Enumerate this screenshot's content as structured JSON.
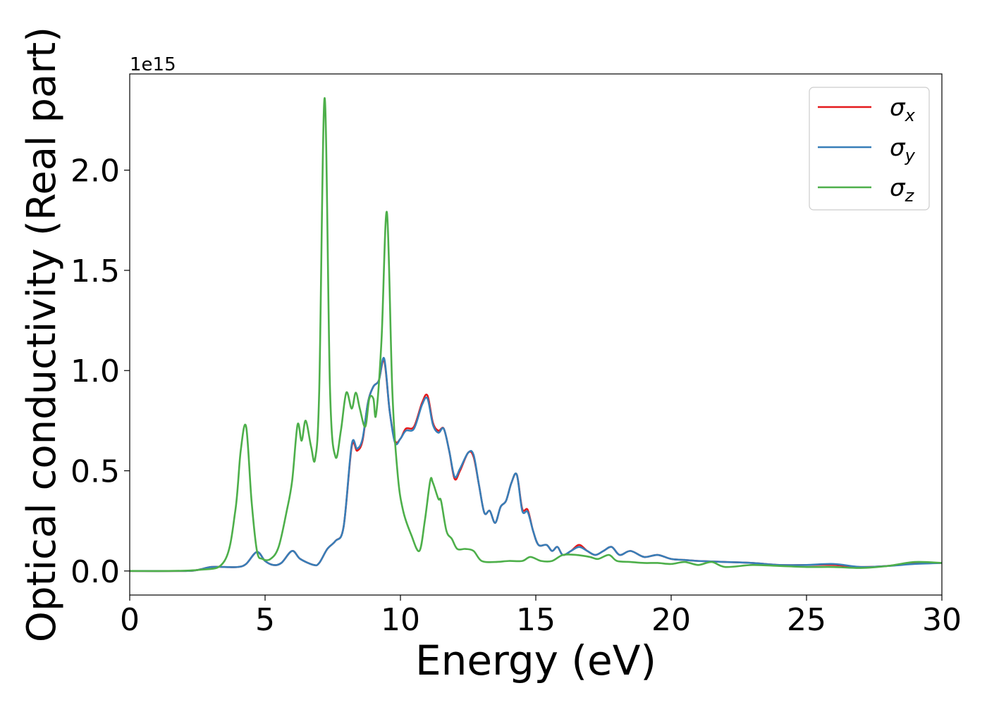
{
  "chart_data": {
    "type": "line",
    "xlabel": "Energy (eV)",
    "ylabel": "Optical conductivity (Real part)",
    "offset_text": "1e15",
    "scale": 1000000000000000.0,
    "xlim": [
      0,
      30
    ],
    "ylim": [
      -0.12,
      2.48
    ],
    "xticks": [
      0,
      5,
      10,
      15,
      20,
      25,
      30
    ],
    "xtick_labels": [
      "0",
      "5",
      "10",
      "15",
      "20",
      "25",
      "30"
    ],
    "yticks": [
      0.0,
      0.5,
      1.0,
      1.5,
      2.0
    ],
    "ytick_labels": [
      "0.0",
      "0.5",
      "1.0",
      "1.5",
      "2.0"
    ],
    "grid": false,
    "legend_position": "top-right",
    "series": [
      {
        "name": "σx",
        "symbol": "σ",
        "subscript": "x",
        "color": "#e41a1c",
        "x": [
          0,
          2,
          2.5,
          3,
          3.5,
          4,
          4.3,
          4.7,
          5.0,
          5.3,
          5.6,
          6.0,
          6.3,
          6.8,
          7.0,
          7.3,
          7.6,
          7.9,
          8.2,
          8.4,
          8.6,
          8.8,
          9.0,
          9.2,
          9.4,
          9.6,
          9.8,
          10.0,
          10.2,
          10.5,
          10.8,
          11.0,
          11.2,
          11.4,
          11.6,
          11.8,
          12.0,
          12.2,
          12.5,
          12.7,
          12.9,
          13.1,
          13.3,
          13.5,
          13.7,
          13.9,
          14.1,
          14.3,
          14.5,
          14.7,
          14.9,
          15.1,
          15.4,
          15.6,
          15.8,
          16.0,
          16.3,
          16.6,
          16.9,
          17.2,
          17.5,
          17.8,
          18.1,
          18.5,
          19.0,
          19.5,
          20.0,
          20.5,
          21.0,
          22.0,
          23.0,
          24.0,
          25.0,
          26.0,
          27.0,
          28.0,
          29.0,
          30.0
        ],
        "y": [
          0.0,
          0.0,
          0.005,
          0.02,
          0.02,
          0.02,
          0.035,
          0.095,
          0.05,
          0.03,
          0.04,
          0.1,
          0.06,
          0.03,
          0.04,
          0.11,
          0.15,
          0.22,
          0.62,
          0.6,
          0.65,
          0.84,
          0.92,
          0.95,
          1.05,
          0.8,
          0.65,
          0.66,
          0.71,
          0.72,
          0.84,
          0.875,
          0.74,
          0.7,
          0.71,
          0.6,
          0.46,
          0.5,
          0.59,
          0.57,
          0.43,
          0.29,
          0.3,
          0.24,
          0.32,
          0.35,
          0.44,
          0.48,
          0.31,
          0.305,
          0.2,
          0.13,
          0.13,
          0.1,
          0.12,
          0.08,
          0.1,
          0.13,
          0.1,
          0.08,
          0.1,
          0.12,
          0.08,
          0.1,
          0.07,
          0.08,
          0.06,
          0.055,
          0.05,
          0.045,
          0.04,
          0.03,
          0.03,
          0.03,
          0.02,
          0.025,
          0.04,
          0.04
        ]
      },
      {
        "name": "σy",
        "symbol": "σ",
        "subscript": "y",
        "color": "#377eb8",
        "x": [
          0,
          2,
          2.5,
          3,
          3.5,
          4,
          4.3,
          4.7,
          5.0,
          5.3,
          5.6,
          6.0,
          6.3,
          6.8,
          7.0,
          7.3,
          7.6,
          7.9,
          8.2,
          8.4,
          8.6,
          8.8,
          9.0,
          9.2,
          9.4,
          9.6,
          9.8,
          10.0,
          10.2,
          10.5,
          10.8,
          11.0,
          11.2,
          11.4,
          11.6,
          11.8,
          12.0,
          12.2,
          12.5,
          12.7,
          12.9,
          13.1,
          13.3,
          13.5,
          13.7,
          13.9,
          14.1,
          14.3,
          14.5,
          14.7,
          14.9,
          15.1,
          15.4,
          15.6,
          15.8,
          16.0,
          16.3,
          16.6,
          16.9,
          17.2,
          17.5,
          17.8,
          18.1,
          18.5,
          19.0,
          19.5,
          20.0,
          20.5,
          21.0,
          22.0,
          23.0,
          24.0,
          25.0,
          26.0,
          27.0,
          28.0,
          29.0,
          30.0
        ],
        "y": [
          0.0,
          0.0,
          0.005,
          0.02,
          0.02,
          0.02,
          0.035,
          0.095,
          0.05,
          0.03,
          0.04,
          0.1,
          0.06,
          0.03,
          0.04,
          0.11,
          0.15,
          0.22,
          0.63,
          0.61,
          0.66,
          0.84,
          0.92,
          0.95,
          1.06,
          0.8,
          0.64,
          0.66,
          0.7,
          0.71,
          0.83,
          0.86,
          0.73,
          0.69,
          0.71,
          0.6,
          0.47,
          0.51,
          0.59,
          0.58,
          0.43,
          0.29,
          0.3,
          0.24,
          0.32,
          0.35,
          0.44,
          0.48,
          0.3,
          0.295,
          0.2,
          0.13,
          0.13,
          0.1,
          0.12,
          0.08,
          0.1,
          0.12,
          0.1,
          0.08,
          0.1,
          0.12,
          0.08,
          0.1,
          0.07,
          0.08,
          0.06,
          0.055,
          0.05,
          0.045,
          0.04,
          0.03,
          0.03,
          0.035,
          0.02,
          0.025,
          0.035,
          0.04
        ]
      },
      {
        "name": "σz",
        "symbol": "σ",
        "subscript": "z",
        "color": "#4daf4a",
        "x": [
          0,
          2.5,
          3.5,
          3.9,
          4.1,
          4.3,
          4.5,
          4.7,
          4.9,
          5.2,
          5.5,
          5.8,
          6.0,
          6.2,
          6.35,
          6.5,
          6.7,
          6.85,
          7.0,
          7.2,
          7.4,
          7.6,
          7.8,
          8.0,
          8.2,
          8.35,
          8.5,
          8.7,
          8.85,
          9.0,
          9.1,
          9.3,
          9.5,
          9.7,
          9.9,
          10.1,
          10.4,
          10.7,
          10.9,
          11.1,
          11.2,
          11.4,
          11.5,
          11.7,
          11.9,
          12.1,
          12.4,
          12.7,
          13.0,
          13.5,
          14.0,
          14.5,
          14.8,
          15.2,
          15.6,
          16.0,
          16.5,
          17.0,
          17.3,
          17.7,
          18.0,
          18.5,
          19.0,
          19.5,
          20.0,
          20.5,
          21.0,
          21.5,
          22.0,
          23.0,
          24.0,
          25.0,
          26.0,
          27.0,
          28.0,
          29.0,
          30.0
        ],
        "y": [
          0.0,
          0.005,
          0.05,
          0.3,
          0.6,
          0.72,
          0.35,
          0.1,
          0.06,
          0.06,
          0.12,
          0.3,
          0.45,
          0.73,
          0.65,
          0.75,
          0.62,
          0.56,
          0.9,
          2.36,
          0.9,
          0.57,
          0.7,
          0.89,
          0.81,
          0.89,
          0.81,
          0.72,
          0.86,
          0.86,
          0.78,
          1.15,
          1.79,
          0.9,
          0.48,
          0.3,
          0.18,
          0.1,
          0.25,
          0.45,
          0.44,
          0.36,
          0.35,
          0.2,
          0.16,
          0.11,
          0.11,
          0.1,
          0.05,
          0.045,
          0.05,
          0.05,
          0.07,
          0.05,
          0.05,
          0.08,
          0.08,
          0.07,
          0.06,
          0.08,
          0.05,
          0.045,
          0.04,
          0.04,
          0.035,
          0.045,
          0.03,
          0.045,
          0.02,
          0.03,
          0.025,
          0.02,
          0.02,
          0.015,
          0.025,
          0.045,
          0.04
        ]
      }
    ]
  }
}
